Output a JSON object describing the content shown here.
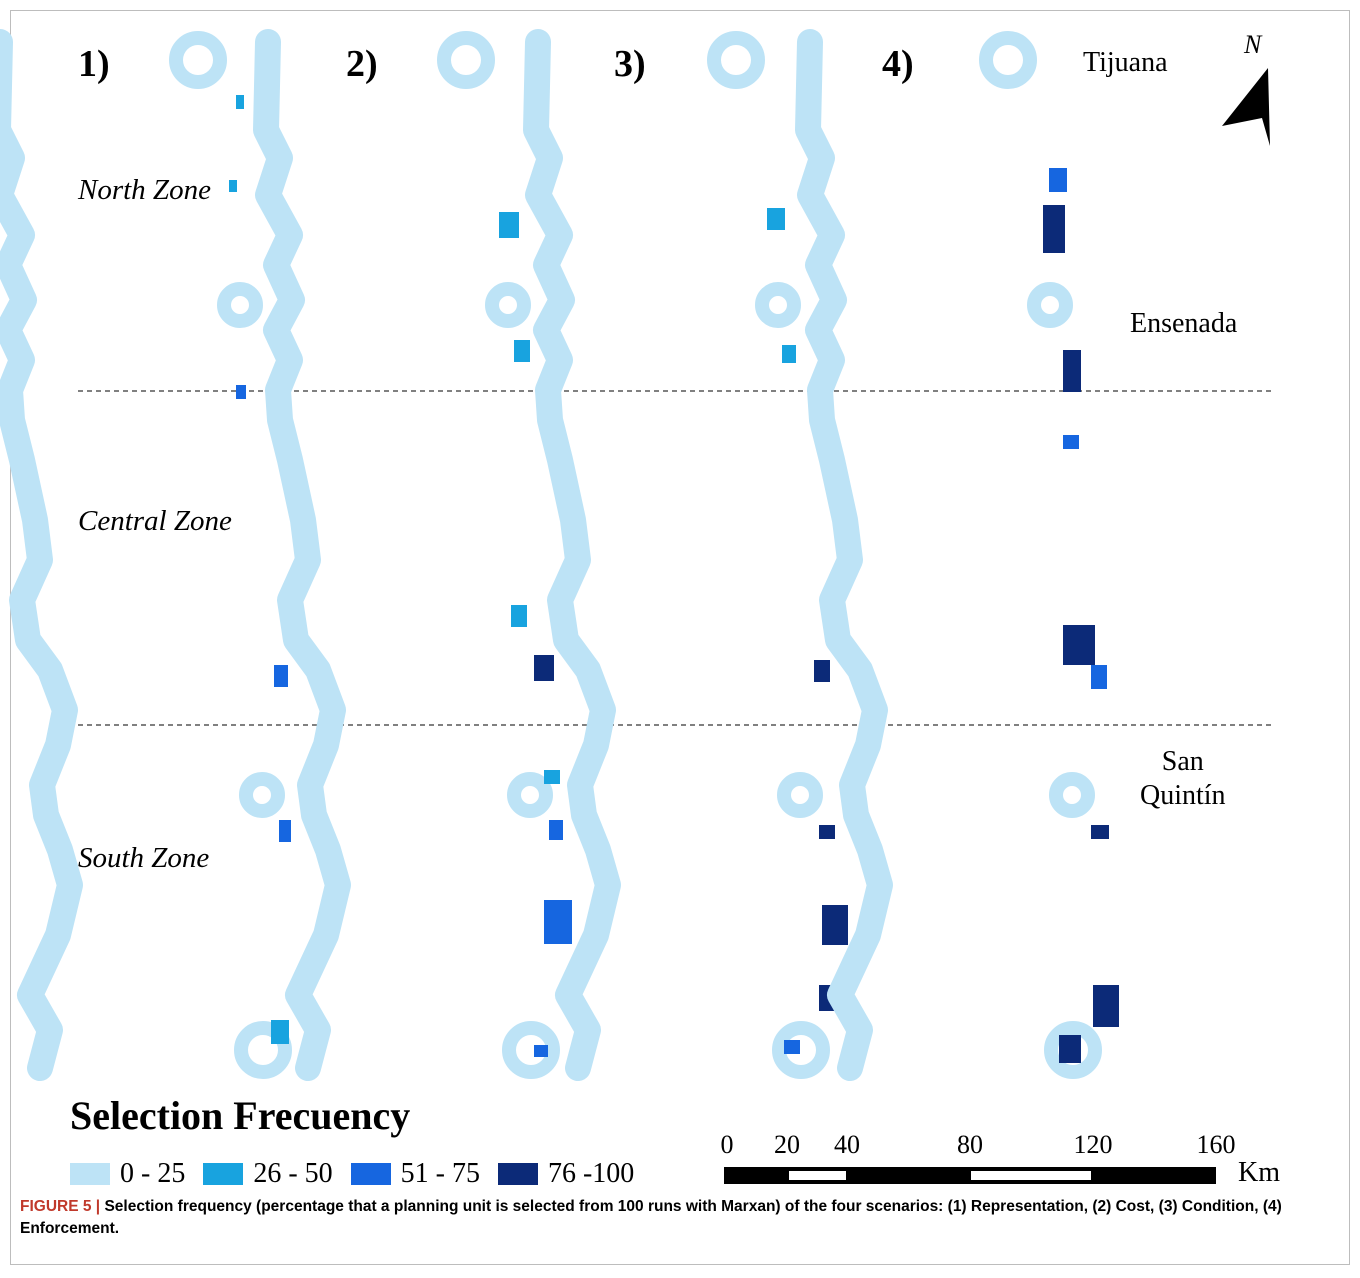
{
  "colors": {
    "c0_25": "#bde3f6",
    "c26_50": "#18a3df",
    "c51_75": "#1666e0",
    "c76_100": "#0c2a78"
  },
  "scenarios": [
    "1)",
    "2)",
    "3)",
    "4)"
  ],
  "zones": {
    "north": "North Zone",
    "central": "Central Zone",
    "south": "South Zone"
  },
  "cities": {
    "tijuana": "Tijuana",
    "ensenada": "Ensenada",
    "san_quintin_1": "San",
    "san_quintin_2": "Quintín"
  },
  "north_arrow": {
    "label": "N",
    "icon": "north-arrow-icon"
  },
  "legend": {
    "title": "Selection Frecuency",
    "classes": [
      {
        "label": "0 - 25",
        "color": "#bde3f6"
      },
      {
        "label": "26 - 50",
        "color": "#18a3df"
      },
      {
        "label": "51 - 75",
        "color": "#1666e0"
      },
      {
        "label": "76 -100",
        "color": "#0c2a78"
      }
    ]
  },
  "scalebar": {
    "ticks": [
      "0",
      "20",
      "40",
      "80",
      "120",
      "160"
    ],
    "unit": "Km"
  },
  "caption": {
    "fig": "FIGURE 5 |",
    "text": " Selection frequency (percentage that a planning unit is selected from 100 runs with Marxan) of the four scenarios: (1) Representation, (2) Cost, (3) Condition, (4) Enforcement."
  }
}
